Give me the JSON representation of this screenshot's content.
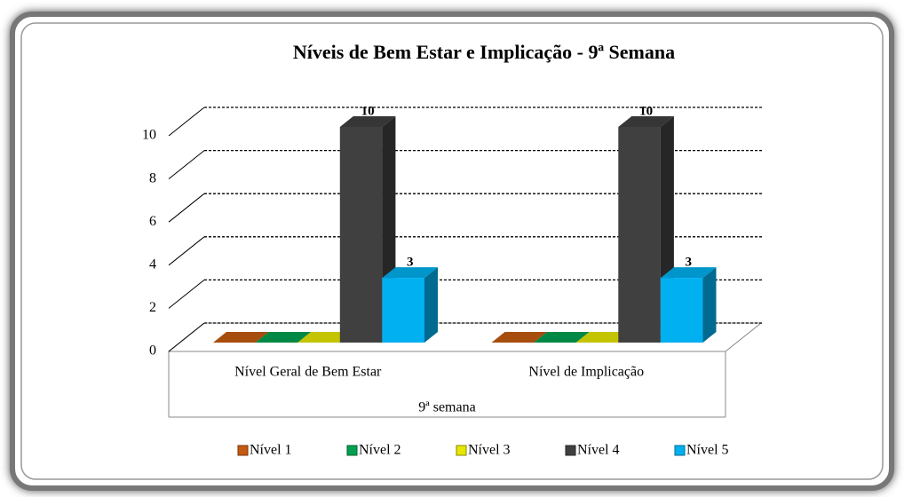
{
  "chart_data": {
    "type": "bar3d",
    "title": "Níveis de Bem Estar e Implicação  - 9ª Semana",
    "categories": [
      "Nível Geral de Bem Estar",
      "Nível de Implicação"
    ],
    "group_label": "9ª semana",
    "series": [
      {
        "name": "Nível 1",
        "color": "#c55a11",
        "values": [
          0,
          0
        ],
        "show_labels": false
      },
      {
        "name": "Nível 2",
        "color": "#00a050",
        "values": [
          0,
          0
        ],
        "show_labels": false
      },
      {
        "name": "Nível 3",
        "color": "#e6e600",
        "values": [
          0,
          0
        ],
        "show_labels": false
      },
      {
        "name": "Nível 4",
        "color": "#404040",
        "values": [
          10,
          10
        ],
        "show_labels": true
      },
      {
        "name": "Nível 5",
        "color": "#00b0f0",
        "values": [
          3,
          3
        ],
        "show_labels": true
      }
    ],
    "ylim": [
      0,
      10
    ],
    "yticks": [
      0,
      2,
      4,
      6,
      8,
      10
    ],
    "grid": true,
    "legend": "bottom"
  }
}
